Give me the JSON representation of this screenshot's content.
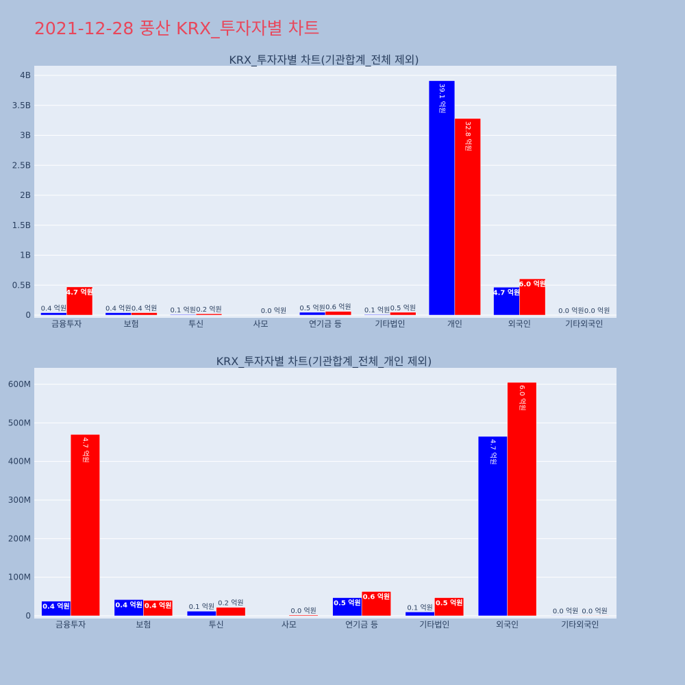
{
  "page_title": "2021-12-28 풍산 KRX_투자자별 차트",
  "colors": {
    "series1": "#0000ff",
    "series2": "#ff0000",
    "title": "#e8475b"
  },
  "chart_data": [
    {
      "type": "bar",
      "title": "KRX_투자자별 차트(기관합계_전체 제외)",
      "categories": [
        "금융투자",
        "보험",
        "투신",
        "사모",
        "연기금 등",
        "기타법인",
        "개인",
        "외국인",
        "기타외국인"
      ],
      "ylim": [
        0,
        4000000000
      ],
      "yticks": [
        0,
        500000000,
        1000000000,
        1500000000,
        2000000000,
        2500000000,
        3000000000,
        3500000000,
        4000000000
      ],
      "ytick_labels": [
        "0",
        "0.5B",
        "1B",
        "1.5B",
        "2B",
        "2.5B",
        "3B",
        "3.5B",
        "4B"
      ],
      "grid": true,
      "series": [
        {
          "color": "#0000ff",
          "values": [
            40000000,
            40000000,
            10000000,
            0,
            47000000,
            10000000,
            3910000000,
            465000000,
            1000000
          ],
          "labels": [
            "0.4 억원",
            "0.4 억원",
            "0.1 억원",
            "",
            "0.5 억원",
            "0.1 억원",
            "39.1 억원",
            "4.7 억원",
            "0.0 억원"
          ]
        },
        {
          "color": "#ff0000",
          "values": [
            470000000,
            40000000,
            22000000,
            2000000,
            62000000,
            47000000,
            3280000000,
            605000000,
            1000000
          ],
          "labels": [
            "4.7 억원",
            "0.4 억원",
            "0.2 억원",
            "0.0 억원",
            "0.6 억원",
            "0.5 억원",
            "32.8 억원",
            "6.0 억원",
            "0.0 억원"
          ]
        }
      ]
    },
    {
      "type": "bar",
      "title": "KRX_투자자별 차트(기관합계_전체_개인 제외)",
      "categories": [
        "금융투자",
        "보험",
        "투신",
        "사모",
        "연기금 등",
        "기타법인",
        "외국인",
        "기타외국인"
      ],
      "ylim": [
        0,
        640000000
      ],
      "yticks": [
        0,
        100000000,
        200000000,
        300000000,
        400000000,
        500000000,
        600000000
      ],
      "ytick_labels": [
        "0",
        "100M",
        "200M",
        "300M",
        "400M",
        "500M",
        "600M"
      ],
      "grid": true,
      "series": [
        {
          "color": "#0000ff",
          "values": [
            38000000,
            42000000,
            12000000,
            0,
            47000000,
            10000000,
            465000000,
            1000000
          ],
          "labels": [
            "0.4 억원",
            "0.4 억원",
            "0.1 억원",
            "",
            "0.5 억원",
            "0.1 억원",
            "4.7 억원",
            "0.0 억원"
          ]
        },
        {
          "color": "#ff0000",
          "values": [
            470000000,
            40000000,
            22000000,
            2000000,
            63000000,
            47000000,
            605000000,
            1000000
          ],
          "labels": [
            "4.7 억원",
            "0.4 억원",
            "0.2 억원",
            "0.0 억원",
            "0.6 억원",
            "0.5 억원",
            "6.0 억원",
            "0.0 억원"
          ]
        }
      ]
    }
  ]
}
